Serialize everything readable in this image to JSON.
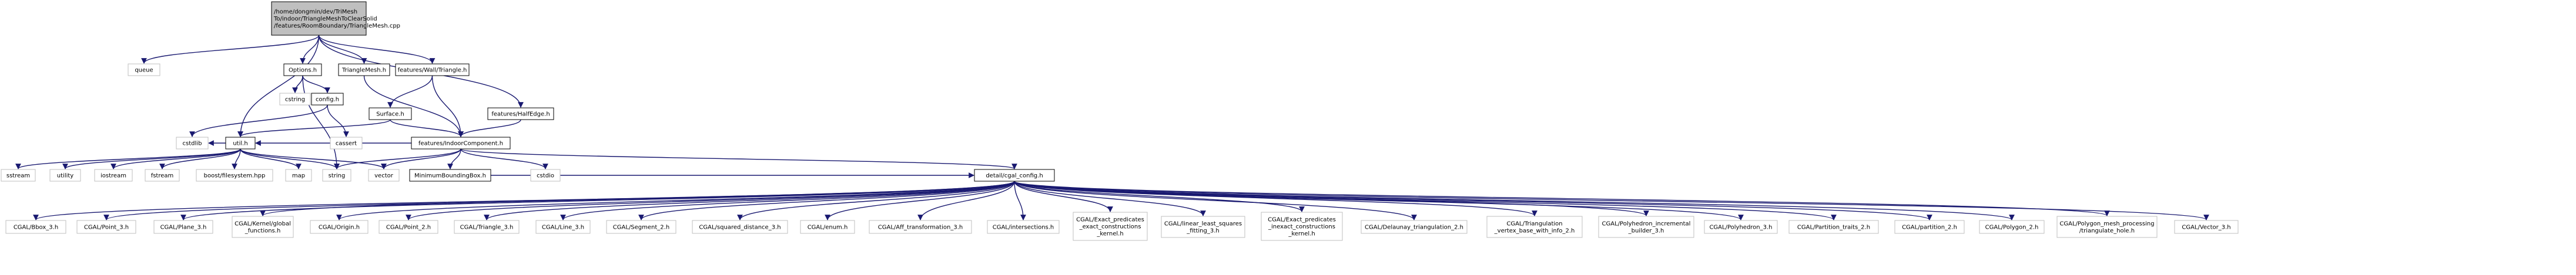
{
  "graph": {
    "root": {
      "lines": [
        "/home/dongmin/dev/TriMesh",
        "To/indoor/TriangleMeshToClearSolid",
        "/features/RoomBoundary/TriangleMesh.cpp"
      ]
    },
    "nodes": {
      "queue": [
        "queue"
      ],
      "options": [
        "Options.h"
      ],
      "trianglemesh": [
        "TriangleMesh.h"
      ],
      "wall_triangle": [
        "features/Wall/Triangle.h"
      ],
      "halfedge": [
        "features/HalfEdge.h"
      ],
      "cstring": [
        "cstring"
      ],
      "config": [
        "config.h"
      ],
      "surface": [
        "Surface.h"
      ],
      "cstdlib": [
        "cstdlib"
      ],
      "util": [
        "util.h"
      ],
      "cassert": [
        "cassert"
      ],
      "indoor_component": [
        "features/IndoorComponent.h"
      ],
      "sstream": [
        "sstream"
      ],
      "utility": [
        "utility"
      ],
      "iostream": [
        "iostream"
      ],
      "fstream": [
        "fstream"
      ],
      "boost_fs": [
        "boost/filesystem.hpp"
      ],
      "map": [
        "map"
      ],
      "string": [
        "string"
      ],
      "vector": [
        "vector"
      ],
      "mbb": [
        "MinimumBoundingBox.h"
      ],
      "cstdio": [
        "cstdio"
      ],
      "cgal_config": [
        "detail/cgal_config.h"
      ],
      "cgal_bbox3": [
        "CGAL/Bbox_3.h"
      ],
      "cgal_point3": [
        "CGAL/Point_3.h"
      ],
      "cgal_plane3": [
        "CGAL/Plane_3.h"
      ],
      "cgal_kernel_global": [
        "CGAL/Kernel/global",
        "_functions.h"
      ],
      "cgal_origin": [
        "CGAL/Origin.h"
      ],
      "cgal_point2": [
        "CGAL/Point_2.h"
      ],
      "cgal_triangle3": [
        "CGAL/Triangle_3.h"
      ],
      "cgal_line3": [
        "CGAL/Line_3.h"
      ],
      "cgal_segment2": [
        "CGAL/Segment_2.h"
      ],
      "cgal_sqdist3": [
        "CGAL/squared_distance_3.h"
      ],
      "cgal_enum": [
        "CGAL/enum.h"
      ],
      "cgal_afftrans3": [
        "CGAL/Aff_transformation_3.h"
      ],
      "cgal_intersections": [
        "CGAL/intersections.h"
      ],
      "cgal_epec": [
        "CGAL/Exact_predicates",
        "_exact_constructions",
        "_kernel.h"
      ],
      "cgal_lsq": [
        "CGAL/linear_least_squares",
        "_fitting_3.h"
      ],
      "cgal_epic": [
        "CGAL/Exact_predicates",
        "_inexact_constructions",
        "_kernel.h"
      ],
      "cgal_delaunay2": [
        "CGAL/Delaunay_triangulation_2.h"
      ],
      "cgal_tri_vbwi2": [
        "CGAL/Triangulation",
        "_vertex_base_with_info_2.h"
      ],
      "cgal_poly_incr": [
        "CGAL/Polyhedron_incremental",
        "_builder_3.h"
      ],
      "cgal_polyhedron3": [
        "CGAL/Polyhedron_3.h"
      ],
      "cgal_partition_traits2": [
        "CGAL/Partition_traits_2.h"
      ],
      "cgal_partition2": [
        "CGAL/partition_2.h"
      ],
      "cgal_polygon2": [
        "CGAL/Polygon_2.h"
      ],
      "cgal_pmp_triangulate": [
        "CGAL/Polygon_mesh_processing",
        "/triangulate_hole.h"
      ],
      "cgal_vector3": [
        "CGAL/Vector_3.h"
      ]
    },
    "edges": [
      [
        "root",
        "queue"
      ],
      [
        "root",
        "options"
      ],
      [
        "root",
        "trianglemesh"
      ],
      [
        "root",
        "wall_triangle"
      ],
      [
        "root",
        "halfedge"
      ],
      [
        "root",
        "util"
      ],
      [
        "options",
        "cstring"
      ],
      [
        "options",
        "config"
      ],
      [
        "options",
        "string"
      ],
      [
        "config",
        "cstdlib"
      ],
      [
        "config",
        "cassert"
      ],
      [
        "trianglemesh",
        "indoor_component"
      ],
      [
        "wall_triangle",
        "surface"
      ],
      [
        "wall_triangle",
        "indoor_component"
      ],
      [
        "halfedge",
        "indoor_component"
      ],
      [
        "surface",
        "util"
      ],
      [
        "surface",
        "indoor_component"
      ],
      [
        "util",
        "cstdlib"
      ],
      [
        "util",
        "sstream"
      ],
      [
        "util",
        "utility"
      ],
      [
        "util",
        "iostream"
      ],
      [
        "util",
        "fstream"
      ],
      [
        "util",
        "boost_fs"
      ],
      [
        "util",
        "map"
      ],
      [
        "util",
        "string"
      ],
      [
        "util",
        "vector"
      ],
      [
        "indoor_component",
        "util"
      ],
      [
        "indoor_component",
        "string"
      ],
      [
        "indoor_component",
        "vector"
      ],
      [
        "indoor_component",
        "mbb"
      ],
      [
        "indoor_component",
        "cstdio"
      ],
      [
        "indoor_component",
        "cgal_config"
      ],
      [
        "mbb",
        "cgal_config"
      ],
      [
        "cgal_config",
        "cgal_bbox3"
      ],
      [
        "cgal_config",
        "cgal_point3"
      ],
      [
        "cgal_config",
        "cgal_plane3"
      ],
      [
        "cgal_config",
        "cgal_kernel_global"
      ],
      [
        "cgal_config",
        "cgal_origin"
      ],
      [
        "cgal_config",
        "cgal_point2"
      ],
      [
        "cgal_config",
        "cgal_triangle3"
      ],
      [
        "cgal_config",
        "cgal_line3"
      ],
      [
        "cgal_config",
        "cgal_segment2"
      ],
      [
        "cgal_config",
        "cgal_sqdist3"
      ],
      [
        "cgal_config",
        "cgal_enum"
      ],
      [
        "cgal_config",
        "cgal_afftrans3"
      ],
      [
        "cgal_config",
        "cgal_intersections"
      ],
      [
        "cgal_config",
        "cgal_epec"
      ],
      [
        "cgal_config",
        "cgal_lsq"
      ],
      [
        "cgal_config",
        "cgal_epic"
      ],
      [
        "cgal_config",
        "cgal_delaunay2"
      ],
      [
        "cgal_config",
        "cgal_tri_vbwi2"
      ],
      [
        "cgal_config",
        "cgal_poly_incr"
      ],
      [
        "cgal_config",
        "cgal_polyhedron3"
      ],
      [
        "cgal_config",
        "cgal_partition_traits2"
      ],
      [
        "cgal_config",
        "cgal_partition2"
      ],
      [
        "cgal_config",
        "cgal_polygon2"
      ],
      [
        "cgal_config",
        "cgal_pmp_triangulate"
      ],
      [
        "cgal_config",
        "cgal_vector3"
      ]
    ],
    "colors": {
      "edge": "#191970",
      "root_fill": "#bfbfbf",
      "linked_border": "#000000",
      "leaf_border": "#bfbfbf",
      "text": "#000000"
    }
  }
}
